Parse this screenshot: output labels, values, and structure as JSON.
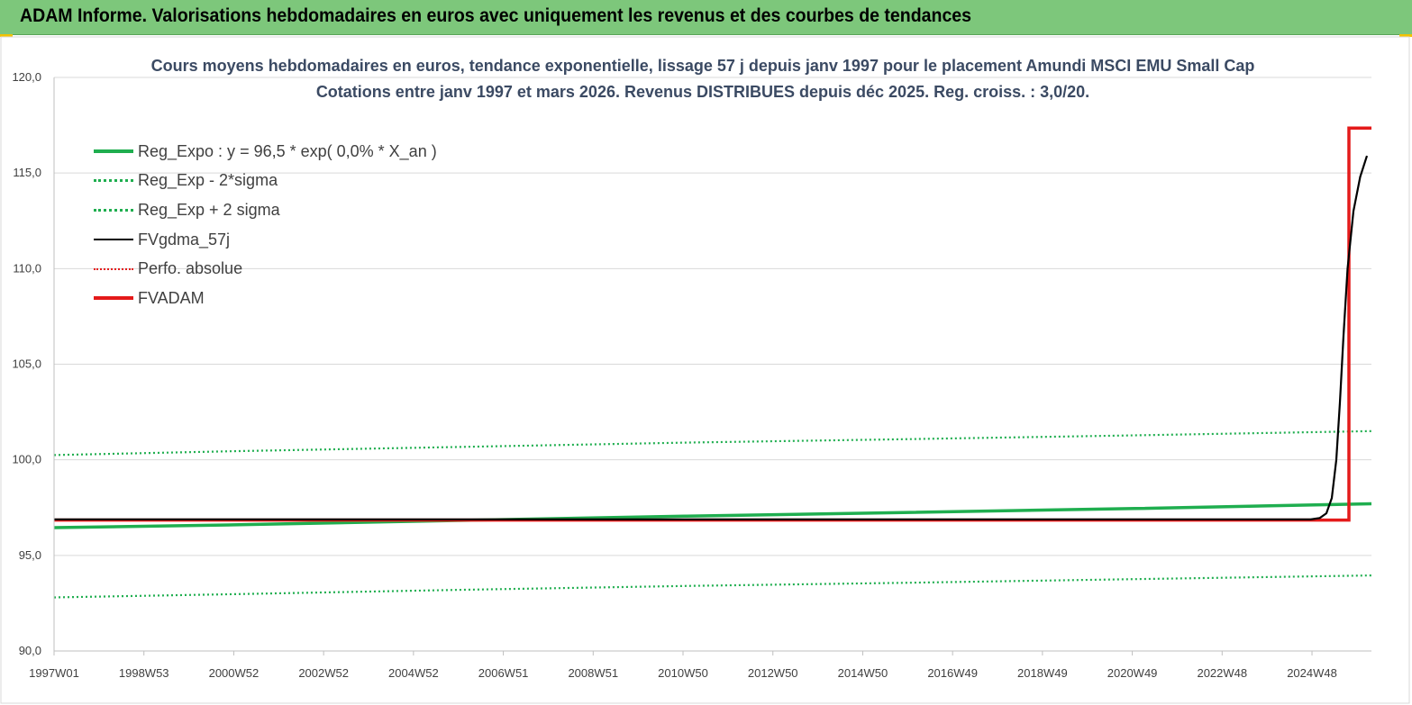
{
  "banner": {
    "title": "ADAM Informe. Valorisations hebdomadaires en euros avec uniquement les revenus et des courbes de tendances",
    "background": "#7dc77b"
  },
  "chart_data": {
    "type": "line",
    "title": "Cours moyens hebdomadaires en euros, tendance exponentielle, lissage 57 j depuis janv 1997  pour le placement Amundi MSCI EMU Small Cap",
    "subtitle": "Cotations entre janv 1997  et mars 2026. Revenus DISTRIBUES depuis déc 2025. Reg. croiss. : 3,0/20.",
    "xlabel": "",
    "ylabel": "",
    "x_ticks": [
      "1997W01",
      "1998W53",
      "2000W52",
      "2002W52",
      "2004W52",
      "2006W51",
      "2008W51",
      "2010W50",
      "2012W50",
      "2014W50",
      "2016W49",
      "2018W49",
      "2020W49",
      "2022W48",
      "2024W48"
    ],
    "y_ticks": [
      "90,0",
      "95,0",
      "100,0",
      "105,0",
      "110,0",
      "115,0",
      "120,0"
    ],
    "ylim": [
      90,
      120
    ],
    "xlim": [
      1997.0,
      2026.25
    ],
    "grid": "horizontal",
    "legend_position": "top-left",
    "series": [
      {
        "name": "Reg_Expo : y = 96,5 * exp( 0,0% *  X_an )",
        "style": "solid",
        "color": "#1fae4f",
        "points": [
          [
            1997.0,
            96.45
          ],
          [
            2001.0,
            96.6
          ],
          [
            2006.0,
            96.83
          ],
          [
            2011.0,
            97.05
          ],
          [
            2016.0,
            97.25
          ],
          [
            2021.0,
            97.45
          ],
          [
            2026.25,
            97.7
          ]
        ]
      },
      {
        "name": "Reg_Exp - 2*sigma",
        "style": "dotted",
        "color": "#1fae4f",
        "points": [
          [
            1997.0,
            92.8
          ],
          [
            2001.0,
            92.97
          ],
          [
            2006.0,
            93.2
          ],
          [
            2011.0,
            93.4
          ],
          [
            2016.0,
            93.57
          ],
          [
            2021.0,
            93.76
          ],
          [
            2026.25,
            93.95
          ]
        ]
      },
      {
        "name": "Reg_Exp + 2 sigma",
        "style": "dotted",
        "color": "#1fae4f",
        "points": [
          [
            1997.0,
            100.25
          ],
          [
            2001.0,
            100.45
          ],
          [
            2006.0,
            100.67
          ],
          [
            2011.0,
            100.9
          ],
          [
            2016.0,
            101.08
          ],
          [
            2021.0,
            101.28
          ],
          [
            2026.25,
            101.5
          ]
        ]
      },
      {
        "name": "FVgdma_57j",
        "style": "solid",
        "color": "#000000",
        "points": [
          [
            1997.0,
            96.88
          ],
          [
            2024.9,
            96.88
          ],
          [
            2025.1,
            96.95
          ],
          [
            2025.25,
            97.2
          ],
          [
            2025.37,
            98.0
          ],
          [
            2025.47,
            100.0
          ],
          [
            2025.55,
            103.0
          ],
          [
            2025.63,
            106.5
          ],
          [
            2025.72,
            110.0
          ],
          [
            2025.85,
            113.0
          ],
          [
            2026.0,
            114.8
          ],
          [
            2026.15,
            115.9
          ]
        ]
      },
      {
        "name": "Perfo. absolue",
        "style": "dotted",
        "color": "#e41a1a",
        "points": [
          [
            1997.0,
            96.85
          ],
          [
            2025.75,
            96.85
          ],
          [
            2025.75,
            117.35
          ],
          [
            2026.25,
            117.35
          ]
        ]
      },
      {
        "name": "FVADAM",
        "style": "solid",
        "color": "#e41a1a",
        "points": [
          [
            1997.0,
            96.85
          ],
          [
            2025.75,
            96.85
          ],
          [
            2025.75,
            117.35
          ],
          [
            2026.25,
            117.35
          ]
        ]
      }
    ]
  }
}
